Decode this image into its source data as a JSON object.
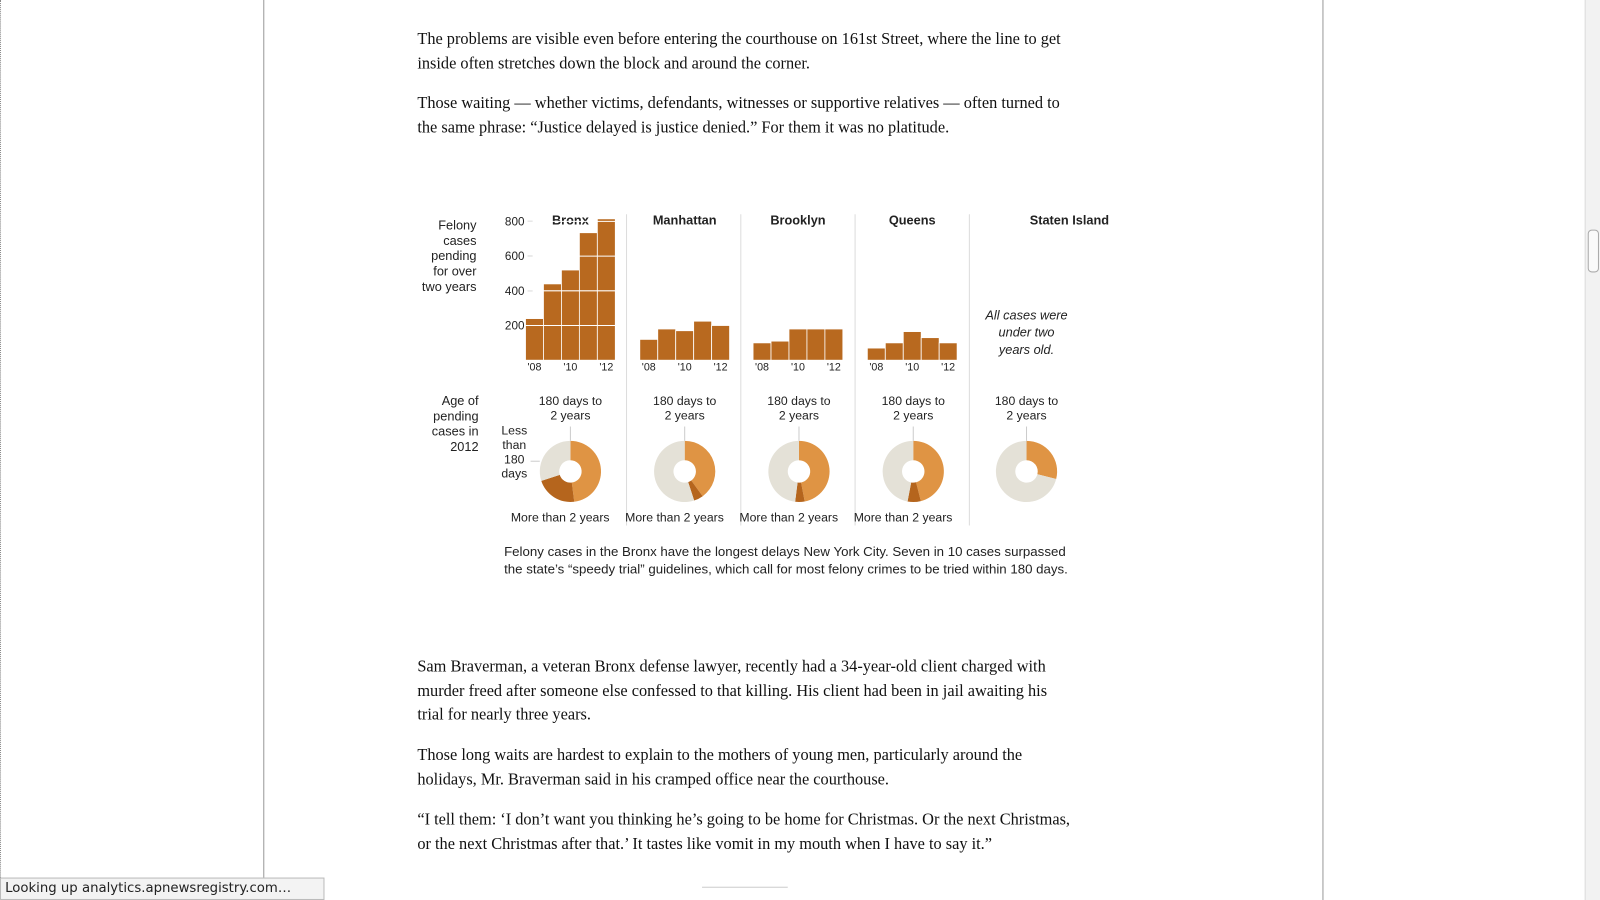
{
  "article": {
    "paragraphs_before": [
      "The problems are visible even before entering the courthouse on 161st Street, where the line to get inside often stretches down the block and around the corner.",
      "Those waiting — whether victims, defendants, witnesses or supportive relatives — often turned to the same phrase: “Justice delayed is justice denied.” For them it was no platitude."
    ],
    "paragraphs_after": [
      "Sam Braverman, a veteran Bronx defense lawyer, recently had a 34-year-old client charged with murder freed after someone else confessed to that killing. His client had been in jail awaiting his trial for nearly three years.",
      "Those long waits are hardest to explain to the mothers of young men, particularly around the holidays, Mr. Braverman said in his cramped office near the courthouse.",
      "“I tell them: ‘I don’t want you thinking he’s going to be home for Christmas. Or the next Christmas, or the next Christmas after that.’ It tastes like vomit in my mouth when I have to say it.”"
    ]
  },
  "graphic": {
    "row_labels": [
      "Felony cases pending for over two years",
      "Age of pending cases in 2012"
    ],
    "caption": "Felony cases in the Bronx have the longest delays New York City. Seven in 10 cases surpassed the state’s “speedy trial” guidelines, which call for most felony crimes to be tried within 180 days."
  },
  "chart_data": [
    {
      "type": "bar",
      "title": "Bronx",
      "categories": [
        "'08",
        null,
        "'10",
        null,
        "'12"
      ],
      "values": [
        240,
        440,
        520,
        735,
        815
      ],
      "color": "#b8691f",
      "ylim": [
        0,
        800
      ],
      "yticks": [
        200,
        400,
        600,
        800
      ]
    },
    {
      "type": "bar",
      "title": "Manhattan",
      "categories": [
        "'08",
        null,
        "'10",
        null,
        "'12"
      ],
      "values": [
        120,
        180,
        170,
        225,
        200
      ],
      "color": "#b8691f",
      "ylim": [
        0,
        800
      ]
    },
    {
      "type": "bar",
      "title": "Brooklyn",
      "categories": [
        "'08",
        null,
        "'10",
        null,
        "'12"
      ],
      "values": [
        100,
        110,
        180,
        180,
        180
      ],
      "color": "#b8691f",
      "ylim": [
        0,
        800
      ]
    },
    {
      "type": "bar",
      "title": "Queens",
      "categories": [
        "'08",
        null,
        "'10",
        null,
        "'12"
      ],
      "values": [
        70,
        100,
        165,
        130,
        100
      ],
      "color": "#b8691f",
      "ylim": [
        0,
        800
      ]
    },
    {
      "type": "bar",
      "title": "Staten Island",
      "note": "All cases were under two years old."
    },
    {
      "type": "pie",
      "categories": [
        "180 days to 2 years",
        "More than 2 years",
        "Less than 180 days"
      ],
      "values": [
        48,
        22,
        30
      ],
      "colors": [
        "#df9444",
        "#b5651d",
        "#e4e1d7"
      ]
    },
    {
      "type": "pie",
      "categories": [
        "180 days to 2 years",
        "More than 2 years",
        null
      ],
      "values": [
        40,
        5,
        55
      ],
      "colors": [
        "#df9444",
        "#b5651d",
        "#e4e1d7"
      ]
    },
    {
      "type": "pie",
      "categories": [
        "180 days to 2 years",
        "More than 2 years",
        null
      ],
      "values": [
        47,
        5,
        48
      ],
      "colors": [
        "#df9444",
        "#b5651d",
        "#e4e1d7"
      ]
    },
    {
      "type": "pie",
      "categories": [
        "180 days to 2 years",
        "More than 2 years",
        null
      ],
      "values": [
        46,
        7,
        47
      ],
      "colors": [
        "#df9444",
        "#b5651d",
        "#e4e1d7"
      ]
    },
    {
      "type": "pie",
      "categories": [
        "180 days to 2 years",
        null,
        null
      ],
      "values": [
        29,
        0,
        71
      ],
      "colors": [
        "#df9444",
        "#b5651d",
        "#e4e1d7"
      ]
    }
  ],
  "browser": {
    "status_text": "Looking up analytics.apnewsregistry.com…"
  }
}
